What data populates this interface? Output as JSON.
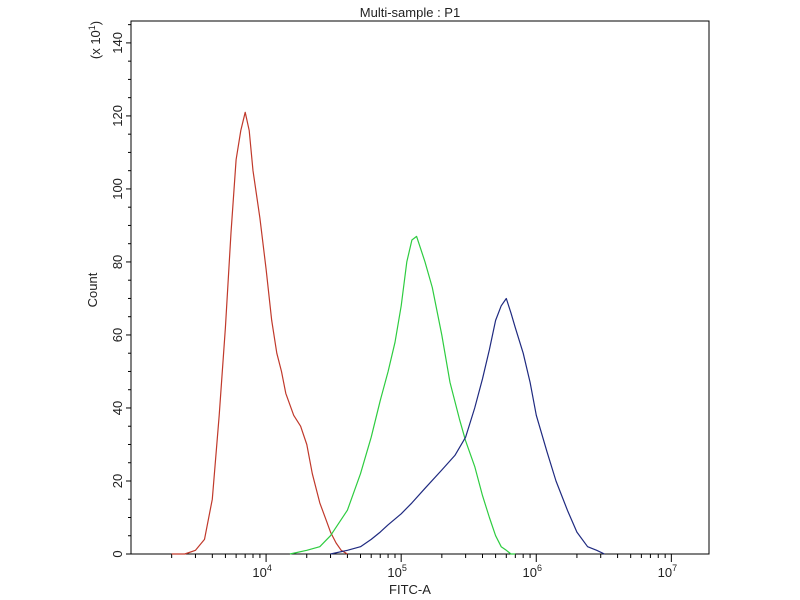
{
  "chart_data": {
    "type": "line",
    "title": "Multi-sample : P1",
    "xlabel": "FITC-A",
    "ylabel": "Count",
    "y_multiplier_label": "(x 10",
    "y_multiplier_exp": "1",
    "y_multiplier_close": ")",
    "x_scale": "log",
    "xlim": [
      1000,
      19000000
    ],
    "ylim": [
      0,
      146
    ],
    "x_ticks": [
      {
        "value": 10000,
        "base": "10",
        "exp": "4"
      },
      {
        "value": 100000,
        "base": "10",
        "exp": "5"
      },
      {
        "value": 1000000,
        "base": "10",
        "exp": "6"
      },
      {
        "value": 10000000,
        "base": "10",
        "exp": "7"
      }
    ],
    "y_ticks": [
      0,
      20,
      40,
      60,
      80,
      100,
      120,
      140
    ],
    "series": [
      {
        "color": "#c0392b",
        "x": [
          2000,
          2500,
          3000,
          3500,
          4000,
          4500,
          5000,
          5500,
          6000,
          6500,
          7000,
          7500,
          8000,
          9000,
          10000,
          11000,
          12000,
          13000,
          14000,
          16000,
          18000,
          20000,
          22000,
          25000,
          28000,
          30000,
          33000,
          36000,
          40000
        ],
        "y": [
          0,
          0,
          1,
          4,
          15,
          38,
          62,
          88,
          108,
          116,
          121,
          116,
          105,
          92,
          78,
          64,
          55,
          50,
          44,
          38,
          35,
          30,
          22,
          14,
          9,
          6,
          3,
          1,
          0
        ]
      },
      {
        "color": "#2ecc40",
        "x": [
          15000,
          20000,
          25000,
          30000,
          40000,
          50000,
          60000,
          70000,
          80000,
          90000,
          100000,
          110000,
          120000,
          130000,
          150000,
          170000,
          200000,
          230000,
          270000,
          300000,
          350000,
          400000,
          450000,
          500000,
          550000,
          600000,
          650000,
          700000
        ],
        "y": [
          0,
          1,
          2,
          5,
          12,
          22,
          32,
          42,
          50,
          58,
          68,
          80,
          86,
          87,
          80,
          73,
          60,
          47,
          37,
          31,
          24,
          16,
          10,
          5,
          2,
          1,
          0,
          0
        ]
      },
      {
        "color": "#1f2a80",
        "x": [
          30000,
          40000,
          50000,
          60000,
          70000,
          80000,
          100000,
          120000,
          150000,
          200000,
          250000,
          300000,
          350000,
          400000,
          450000,
          500000,
          550000,
          600000,
          650000,
          700000,
          800000,
          900000,
          1000000,
          1200000,
          1400000,
          1700000,
          2000000,
          2400000,
          2800000,
          3200000
        ],
        "y": [
          0,
          1,
          2,
          4,
          6,
          8,
          11,
          14,
          18,
          23,
          27,
          32,
          40,
          48,
          56,
          64,
          68,
          70,
          66,
          62,
          55,
          47,
          38,
          28,
          20,
          12,
          6,
          2,
          1,
          0
        ]
      }
    ]
  }
}
